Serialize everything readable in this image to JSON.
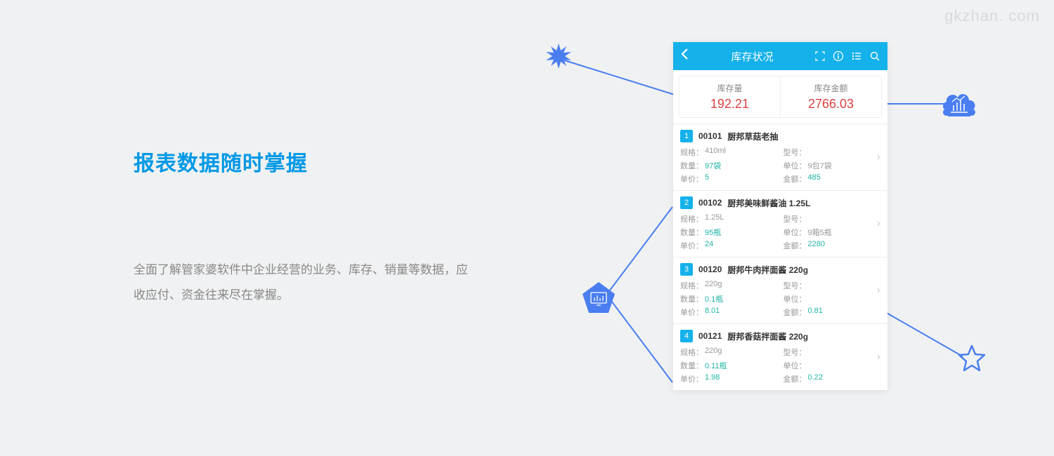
{
  "watermark": "gkzhan. com",
  "heading": "报表数据随时掌握",
  "description": "全面了解管家婆软件中企业经营的业务、库存、销量等数据，应收应付、资金往来尽在掌握。",
  "phone": {
    "title": "库存状况",
    "summary": {
      "stock_label": "库存量",
      "stock_value": "192.21",
      "amount_label": "库存金额",
      "amount_value": "2766.03"
    },
    "items": [
      {
        "num": "1",
        "code": "00101",
        "name": "厨邦草菇老抽",
        "spec_label": "规格：",
        "spec": "410ml",
        "model_label": "型号：",
        "model": "",
        "qty_label": "数量：",
        "qty": "97袋",
        "unit_label": "单位：",
        "unit": "9包7袋",
        "price_label": "单价：",
        "price": "5",
        "amount_label": "金额：",
        "amount": "485"
      },
      {
        "num": "2",
        "code": "00102",
        "name": "厨邦美味鲜酱油 1.25L",
        "spec_label": "规格：",
        "spec": "1.25L",
        "model_label": "型号：",
        "model": "",
        "qty_label": "数量：",
        "qty": "95瓶",
        "unit_label": "单位：",
        "unit": "9箱5瓶",
        "price_label": "单价：",
        "price": "24",
        "amount_label": "金额：",
        "amount": "2280"
      },
      {
        "num": "3",
        "code": "00120",
        "name": "厨邦牛肉拌面酱 220g",
        "spec_label": "规格：",
        "spec": "220g",
        "model_label": "型号：",
        "model": "",
        "qty_label": "数量：",
        "qty": "0.1瓶",
        "unit_label": "单位：",
        "unit": "",
        "price_label": "单价：",
        "price": "8.01",
        "amount_label": "金额：",
        "amount": "0.81"
      },
      {
        "num": "4",
        "code": "00121",
        "name": "厨邦香菇拌面酱 220g",
        "spec_label": "规格：",
        "spec": "220g",
        "model_label": "型号：",
        "model": "",
        "qty_label": "数量：",
        "qty": "0.11瓶",
        "unit_label": "单位：",
        "unit": "",
        "price_label": "单价：",
        "price": "1.98",
        "amount_label": "金额：",
        "amount": "0.22"
      }
    ]
  },
  "colors": {
    "primary": "#14b1ea",
    "accent": "#4a7ef0",
    "red": "#d94242",
    "teal": "#1fb5a6",
    "bg": "#f0f1f2"
  }
}
